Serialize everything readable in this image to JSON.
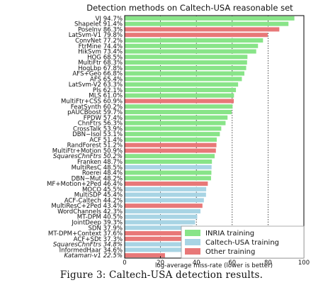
{
  "caption": "Figure 3: Caltech-USA detection results.",
  "chart_data": {
    "type": "bar",
    "orientation": "horizontal",
    "title": "Detection methods on Caltech-USA reasonable set",
    "xlabel": "log-average miss-rate (lower is better)",
    "xlim": [
      0,
      100
    ],
    "xticks": [
      0,
      20,
      40,
      60,
      80,
      100
    ],
    "grid": "vertical dotted at 20, 40, 60, 80",
    "legend_position": "bottom-right",
    "colors": {
      "inria": "#88e488",
      "caltech": "#a8d4e4",
      "other": "#e87878"
    },
    "legend": [
      {
        "key": "inria",
        "label": "INRIA training"
      },
      {
        "key": "caltech",
        "label": "Caltech-USA training"
      },
      {
        "key": "other",
        "label": "Other training"
      }
    ],
    "bars": [
      {
        "label": "VJ 94.7%",
        "value": 94.7,
        "group": "inria",
        "italic": false
      },
      {
        "label": "Shapelet 91.4%",
        "value": 91.4,
        "group": "inria",
        "italic": false
      },
      {
        "label": "PoseInv 86.3%",
        "value": 86.3,
        "group": "other",
        "italic": false
      },
      {
        "label": "LatSvm-V1 79.8%",
        "value": 79.8,
        "group": "other",
        "italic": false
      },
      {
        "label": "ConvNet 77.2%",
        "value": 77.2,
        "group": "inria",
        "italic": false
      },
      {
        "label": "FtrMine 74.4%",
        "value": 74.4,
        "group": "inria",
        "italic": false
      },
      {
        "label": "HikSvm 73.4%",
        "value": 73.4,
        "group": "inria",
        "italic": false
      },
      {
        "label": "HOG 68.5%",
        "value": 68.5,
        "group": "inria",
        "italic": false
      },
      {
        "label": "MultiFtr 68.3%",
        "value": 68.3,
        "group": "inria",
        "italic": false
      },
      {
        "label": "HogLbp 67.8%",
        "value": 67.8,
        "group": "inria",
        "italic": false
      },
      {
        "label": "AFS+Geo 66.8%",
        "value": 66.8,
        "group": "inria",
        "italic": false
      },
      {
        "label": "AFS 65.4%",
        "value": 65.4,
        "group": "inria",
        "italic": false
      },
      {
        "label": "LatSvm-V2 63.3%",
        "value": 63.3,
        "group": "inria",
        "italic": false
      },
      {
        "label": "Pls 62.1%",
        "value": 62.1,
        "group": "inria",
        "italic": false
      },
      {
        "label": "MLS 61.0%",
        "value": 61.0,
        "group": "inria",
        "italic": false
      },
      {
        "label": "MultiFtr+CSS 60.9%",
        "value": 60.9,
        "group": "other",
        "italic": false
      },
      {
        "label": "FeatSynth 60.2%",
        "value": 60.2,
        "group": "inria",
        "italic": false
      },
      {
        "label": "pAUCBoost 59.7%",
        "value": 59.7,
        "group": "inria",
        "italic": false
      },
      {
        "label": "FPDW 57.4%",
        "value": 57.4,
        "group": "inria",
        "italic": false
      },
      {
        "label": "ChnFtrs 56.3%",
        "value": 56.3,
        "group": "inria",
        "italic": false
      },
      {
        "label": "CrossTalk 53.9%",
        "value": 53.9,
        "group": "inria",
        "italic": false
      },
      {
        "label": "DBN−Isol 53.1%",
        "value": 53.1,
        "group": "inria",
        "italic": false
      },
      {
        "label": "ACF 51.4%",
        "value": 51.4,
        "group": "inria",
        "italic": false
      },
      {
        "label": "RandForest 51.2%",
        "value": 51.2,
        "group": "other",
        "italic": false
      },
      {
        "label": "MultiFtr+Motion 50.9%",
        "value": 50.9,
        "group": "other",
        "italic": false
      },
      {
        "label": "SquaresChnFtrs 50.2%",
        "value": 50.2,
        "group": "inria",
        "italic": true
      },
      {
        "label": "Franken 48.7%",
        "value": 48.7,
        "group": "inria",
        "italic": false
      },
      {
        "label": "MultiResC 48.5%",
        "value": 48.5,
        "group": "caltech",
        "italic": false
      },
      {
        "label": "Roerei 48.4%",
        "value": 48.4,
        "group": "inria",
        "italic": false
      },
      {
        "label": "DBN−Mut 48.2%",
        "value": 48.2,
        "group": "inria",
        "italic": false
      },
      {
        "label": "MF+Motion+2Ped 46.4%",
        "value": 46.4,
        "group": "other",
        "italic": false
      },
      {
        "label": "MOCO 45.5%",
        "value": 45.5,
        "group": "caltech",
        "italic": false
      },
      {
        "label": "MultiSDP 45.4%",
        "value": 45.4,
        "group": "caltech",
        "italic": false
      },
      {
        "label": "ACF-Caltech 44.2%",
        "value": 44.2,
        "group": "caltech",
        "italic": false
      },
      {
        "label": "MultiResC+2Ped 43.4%",
        "value": 43.4,
        "group": "other",
        "italic": false
      },
      {
        "label": "WordChannels 42.3%",
        "value": 42.3,
        "group": "caltech",
        "italic": false
      },
      {
        "label": "MT-DPM 40.5%",
        "value": 40.5,
        "group": "caltech",
        "italic": false
      },
      {
        "label": "JointDeep 39.3%",
        "value": 39.3,
        "group": "caltech",
        "italic": false
      },
      {
        "label": "SDN 37.9%",
        "value": 37.9,
        "group": "caltech",
        "italic": false
      },
      {
        "label": "MT-DPM+Context 37.6%",
        "value": 37.6,
        "group": "other",
        "italic": false
      },
      {
        "label": "ACF+SDt 37.3%",
        "value": 37.3,
        "group": "other",
        "italic": false
      },
      {
        "label": "SquaresChnFtrs 34.8%",
        "value": 34.8,
        "group": "caltech",
        "italic": true
      },
      {
        "label": "InformedHaar 34.6%",
        "value": 34.6,
        "group": "caltech",
        "italic": false
      },
      {
        "label": "Katamari-v1 22.5%",
        "value": 22.5,
        "group": "other",
        "italic": true
      }
    ]
  }
}
